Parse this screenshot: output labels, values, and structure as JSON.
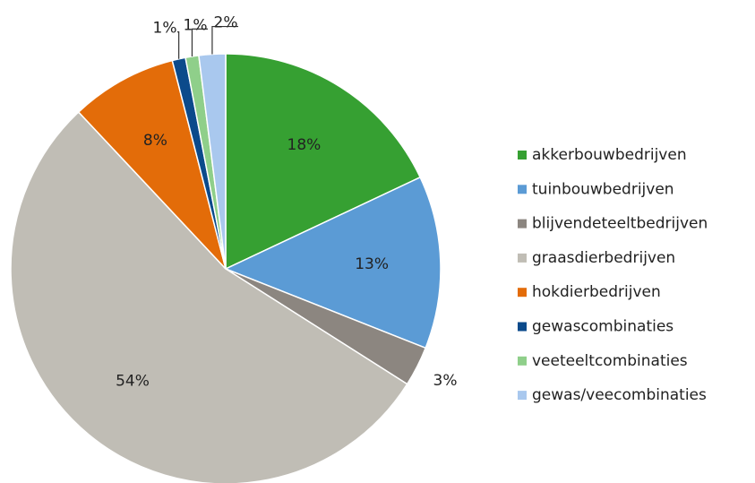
{
  "chart_data": {
    "type": "pie",
    "categories": [
      "akkerbouwbedrijven",
      "tuinbouwbedrijven",
      "blijvendeteeltbedrijven",
      "graasdierbedrijven",
      "hokdierbedrijven",
      "gewascombinaties",
      "veeteeltcombinaties",
      "gewas/veecombinaties"
    ],
    "values": [
      18,
      13,
      3,
      54,
      8,
      1,
      1,
      2
    ],
    "value_labels": [
      "18%",
      "13%",
      "3%",
      "54%",
      "8%",
      "1%",
      "1%",
      "2%"
    ],
    "colors": [
      "#36a032",
      "#5b9bd5",
      "#8c8680",
      "#c0bdb5",
      "#e36c09",
      "#0b4a8b",
      "#8fcf8a",
      "#a9c8ee"
    ],
    "legend": "right"
  }
}
